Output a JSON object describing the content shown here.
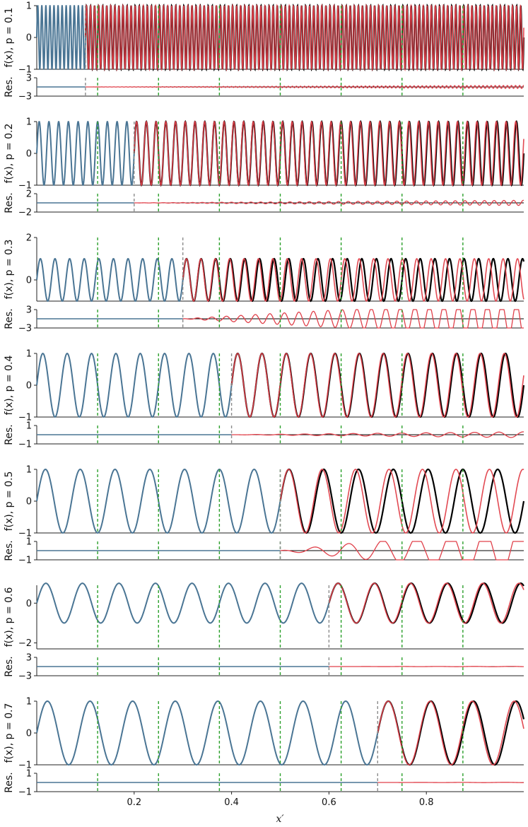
{
  "chart_data": {
    "type": "line",
    "xlabel": "x′",
    "x_range": [
      0,
      1
    ],
    "x_ticks": [
      0.2,
      0.4,
      0.6,
      0.8
    ],
    "x_tick_labels": [
      "0.2",
      "0.4",
      "0.6",
      "0.8"
    ],
    "colors": {
      "ground_truth": "#000000",
      "context": "#4a7594",
      "prediction": "#e0404a",
      "dyadic_marker": "#2ca02c",
      "context_boundary": "#8c8c8c"
    },
    "dyadic_markers_x": [
      0.125,
      0.25,
      0.375,
      0.5,
      0.625,
      0.75,
      0.875
    ],
    "residual_ylabel": "Res.",
    "panels": [
      {
        "p": 0.1,
        "ylabel": "f(x), p = 0.1",
        "ylim": [
          -1,
          1
        ],
        "yticks": [
          "1",
          "0",
          "−1"
        ],
        "res_ylim": [
          -3,
          3
        ],
        "res_yticks": [
          "3",
          "−3"
        ],
        "boundary_x": 0.1,
        "cycles_context": 12,
        "cycles_total_after": 120,
        "prediction_freq_ratio": 1.0,
        "residual_amplitude": 0.8
      },
      {
        "p": 0.2,
        "ylabel": "f(x), p = 0.2",
        "ylim": [
          -1,
          1
        ],
        "yticks": [
          "1",
          "0",
          "−1"
        ],
        "res_ylim": [
          -2,
          2
        ],
        "res_yticks": [
          "2",
          "−2"
        ],
        "boundary_x": 0.2,
        "cycles_context": 10,
        "cycles_total_after": 50,
        "prediction_freq_ratio": 1.0,
        "residual_amplitude": 0.6
      },
      {
        "p": 0.3,
        "ylabel": "f(x), p = 0.3",
        "ylim": [
          -1,
          2
        ],
        "yticks": [
          "2",
          "0"
        ],
        "res_ylim": [
          -3,
          3
        ],
        "res_yticks": [
          "3",
          "−3"
        ],
        "boundary_x": 0.3,
        "cycles_context": 10,
        "cycles_total_after": 33,
        "prediction_freq_ratio": 1.0,
        "residual_amplitude": 1.5
      },
      {
        "p": 0.4,
        "ylabel": "f(x), p = 0.4",
        "ylim": [
          -1,
          1
        ],
        "yticks": [
          "1",
          "0",
          "−1"
        ],
        "res_ylim": [
          -1,
          1
        ],
        "res_yticks": [
          "1",
          "−1"
        ],
        "boundary_x": 0.4,
        "cycles_context": 8,
        "cycles_total_after": 20,
        "prediction_freq_ratio": 1.0,
        "residual_amplitude": 0.5
      },
      {
        "p": 0.5,
        "ylabel": "f(x), p = 0.5",
        "ylim": [
          -1,
          1
        ],
        "yticks": [
          "1",
          "0",
          "−1"
        ],
        "res_ylim": [
          -1,
          1
        ],
        "res_yticks": [
          "1",
          "−1"
        ],
        "boundary_x": 0.5,
        "cycles_context": 7,
        "cycles_total_after": 14,
        "prediction_freq_ratio": 1.0,
        "residual_amplitude": 0.8
      },
      {
        "p": 0.6,
        "ylabel": "f(x), p = 0.6",
        "ylim": [
          -2.3,
          0.9
        ],
        "yticks": [
          "0",
          "−2"
        ],
        "res_ylim": [
          -3,
          3
        ],
        "res_yticks": [
          "3",
          "−3"
        ],
        "boundary_x": 0.6,
        "cycles_context": 8,
        "cycles_total_after": 13.3,
        "prediction_freq_ratio": 1.0,
        "residual_amplitude": 0.1
      },
      {
        "p": 0.7,
        "ylabel": "f(x), p = 0.7",
        "ylim": [
          -1,
          1
        ],
        "yticks": [
          "1",
          "0",
          "−1"
        ],
        "res_ylim": [
          -1,
          1
        ],
        "res_yticks": [
          "1",
          "−1"
        ],
        "boundary_x": 0.7,
        "cycles_context": 8,
        "cycles_total_after": 11.4,
        "prediction_freq_ratio": 1.0,
        "residual_amplitude": 0.03
      }
    ]
  }
}
